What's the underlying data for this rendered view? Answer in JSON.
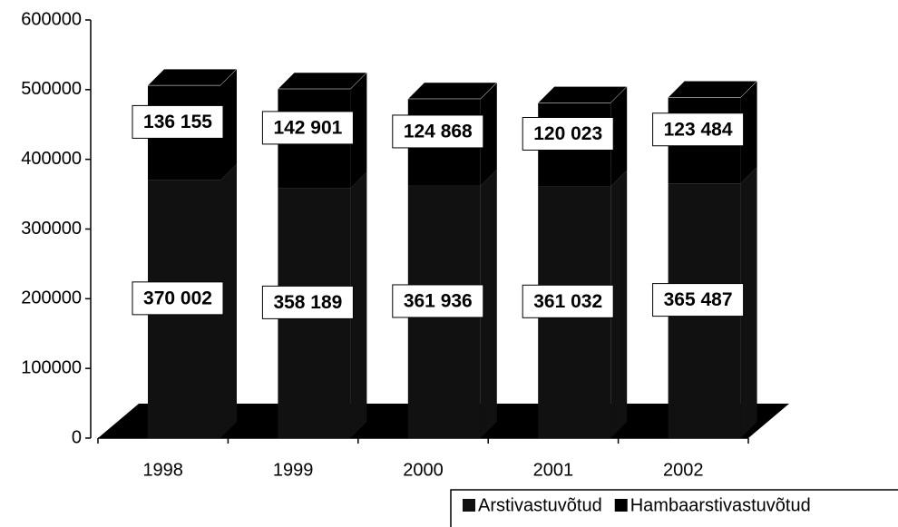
{
  "chart_data": {
    "type": "bar3d_stacked",
    "categories": [
      "1998",
      "1999",
      "2000",
      "2001",
      "2002"
    ],
    "series": [
      {
        "name": "Arstivastuvõtud",
        "color": "#111111",
        "values": [
          370002,
          358189,
          361936,
          361032,
          365487
        ],
        "value_labels": [
          "370 002",
          "358 189",
          "361 936",
          "361 032",
          "365 487"
        ]
      },
      {
        "name": "Hambaarstivastuvõtud",
        "color": "#000000",
        "values": [
          136155,
          142901,
          124868,
          120023,
          123484
        ],
        "value_labels": [
          "136 155",
          "142 901",
          "124 868",
          "120 023",
          "123 484"
        ]
      }
    ],
    "ylim": [
      0,
      600000
    ],
    "yticks": [
      0,
      100000,
      200000,
      300000,
      400000,
      500000,
      600000
    ],
    "legend": "bottom-right"
  }
}
